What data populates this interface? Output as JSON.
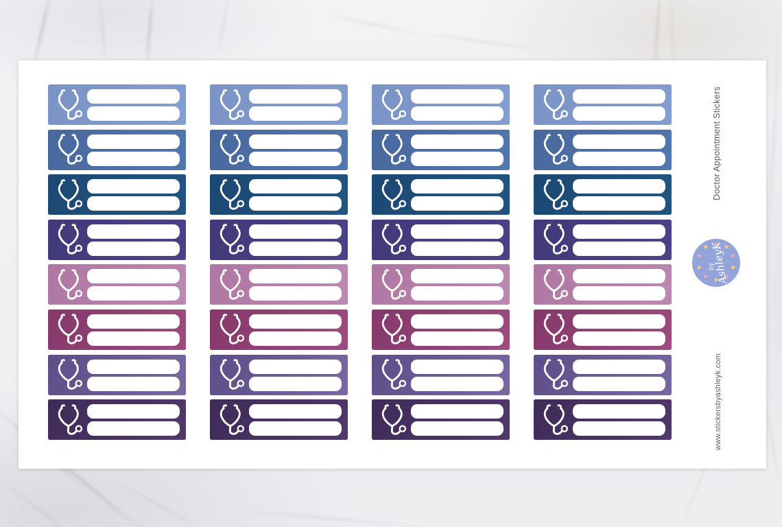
{
  "product": {
    "title": "Doctor Appointment Stickers",
    "website": "www.stickersbyashleyk.com"
  },
  "badge": {
    "by": "by",
    "name": "AshleyK",
    "circle_color": "#92a4d9",
    "text_color": "#ffffff",
    "heart_colors": [
      "#efa6b6",
      "#f0cc7e"
    ],
    "heart_count": 10
  },
  "sheet": {
    "color": "#ffffff",
    "columns": 4,
    "sticker": {
      "icon": "stethoscope-icon",
      "icon_color": "#ffffff",
      "field_count": 2,
      "field_color": "#ffffff"
    },
    "rows": [
      {
        "label": "periwinkle-blue",
        "color_start": "#7a93c5",
        "color_end": "#849ecf"
      },
      {
        "label": "denim-blue",
        "color_start": "#48689d",
        "color_end": "#5278ae"
      },
      {
        "label": "navy-blue",
        "color_start": "#1c4873",
        "color_end": "#225580"
      },
      {
        "label": "indigo-purple",
        "color_start": "#413a79",
        "color_end": "#4a4386"
      },
      {
        "label": "orchid-mauve",
        "color_start": "#ae77a3",
        "color_end": "#bc89b2"
      },
      {
        "label": "plum-magenta",
        "color_start": "#85386a",
        "color_end": "#9d4c80"
      },
      {
        "label": "dusty-violet",
        "color_start": "#5d4d88",
        "color_end": "#7869a1"
      },
      {
        "label": "dark-purple",
        "color_start": "#3f2b58",
        "color_end": "#51386b"
      }
    ]
  },
  "background": {
    "style": "white-marble",
    "base_color": "#f2f2f4"
  }
}
